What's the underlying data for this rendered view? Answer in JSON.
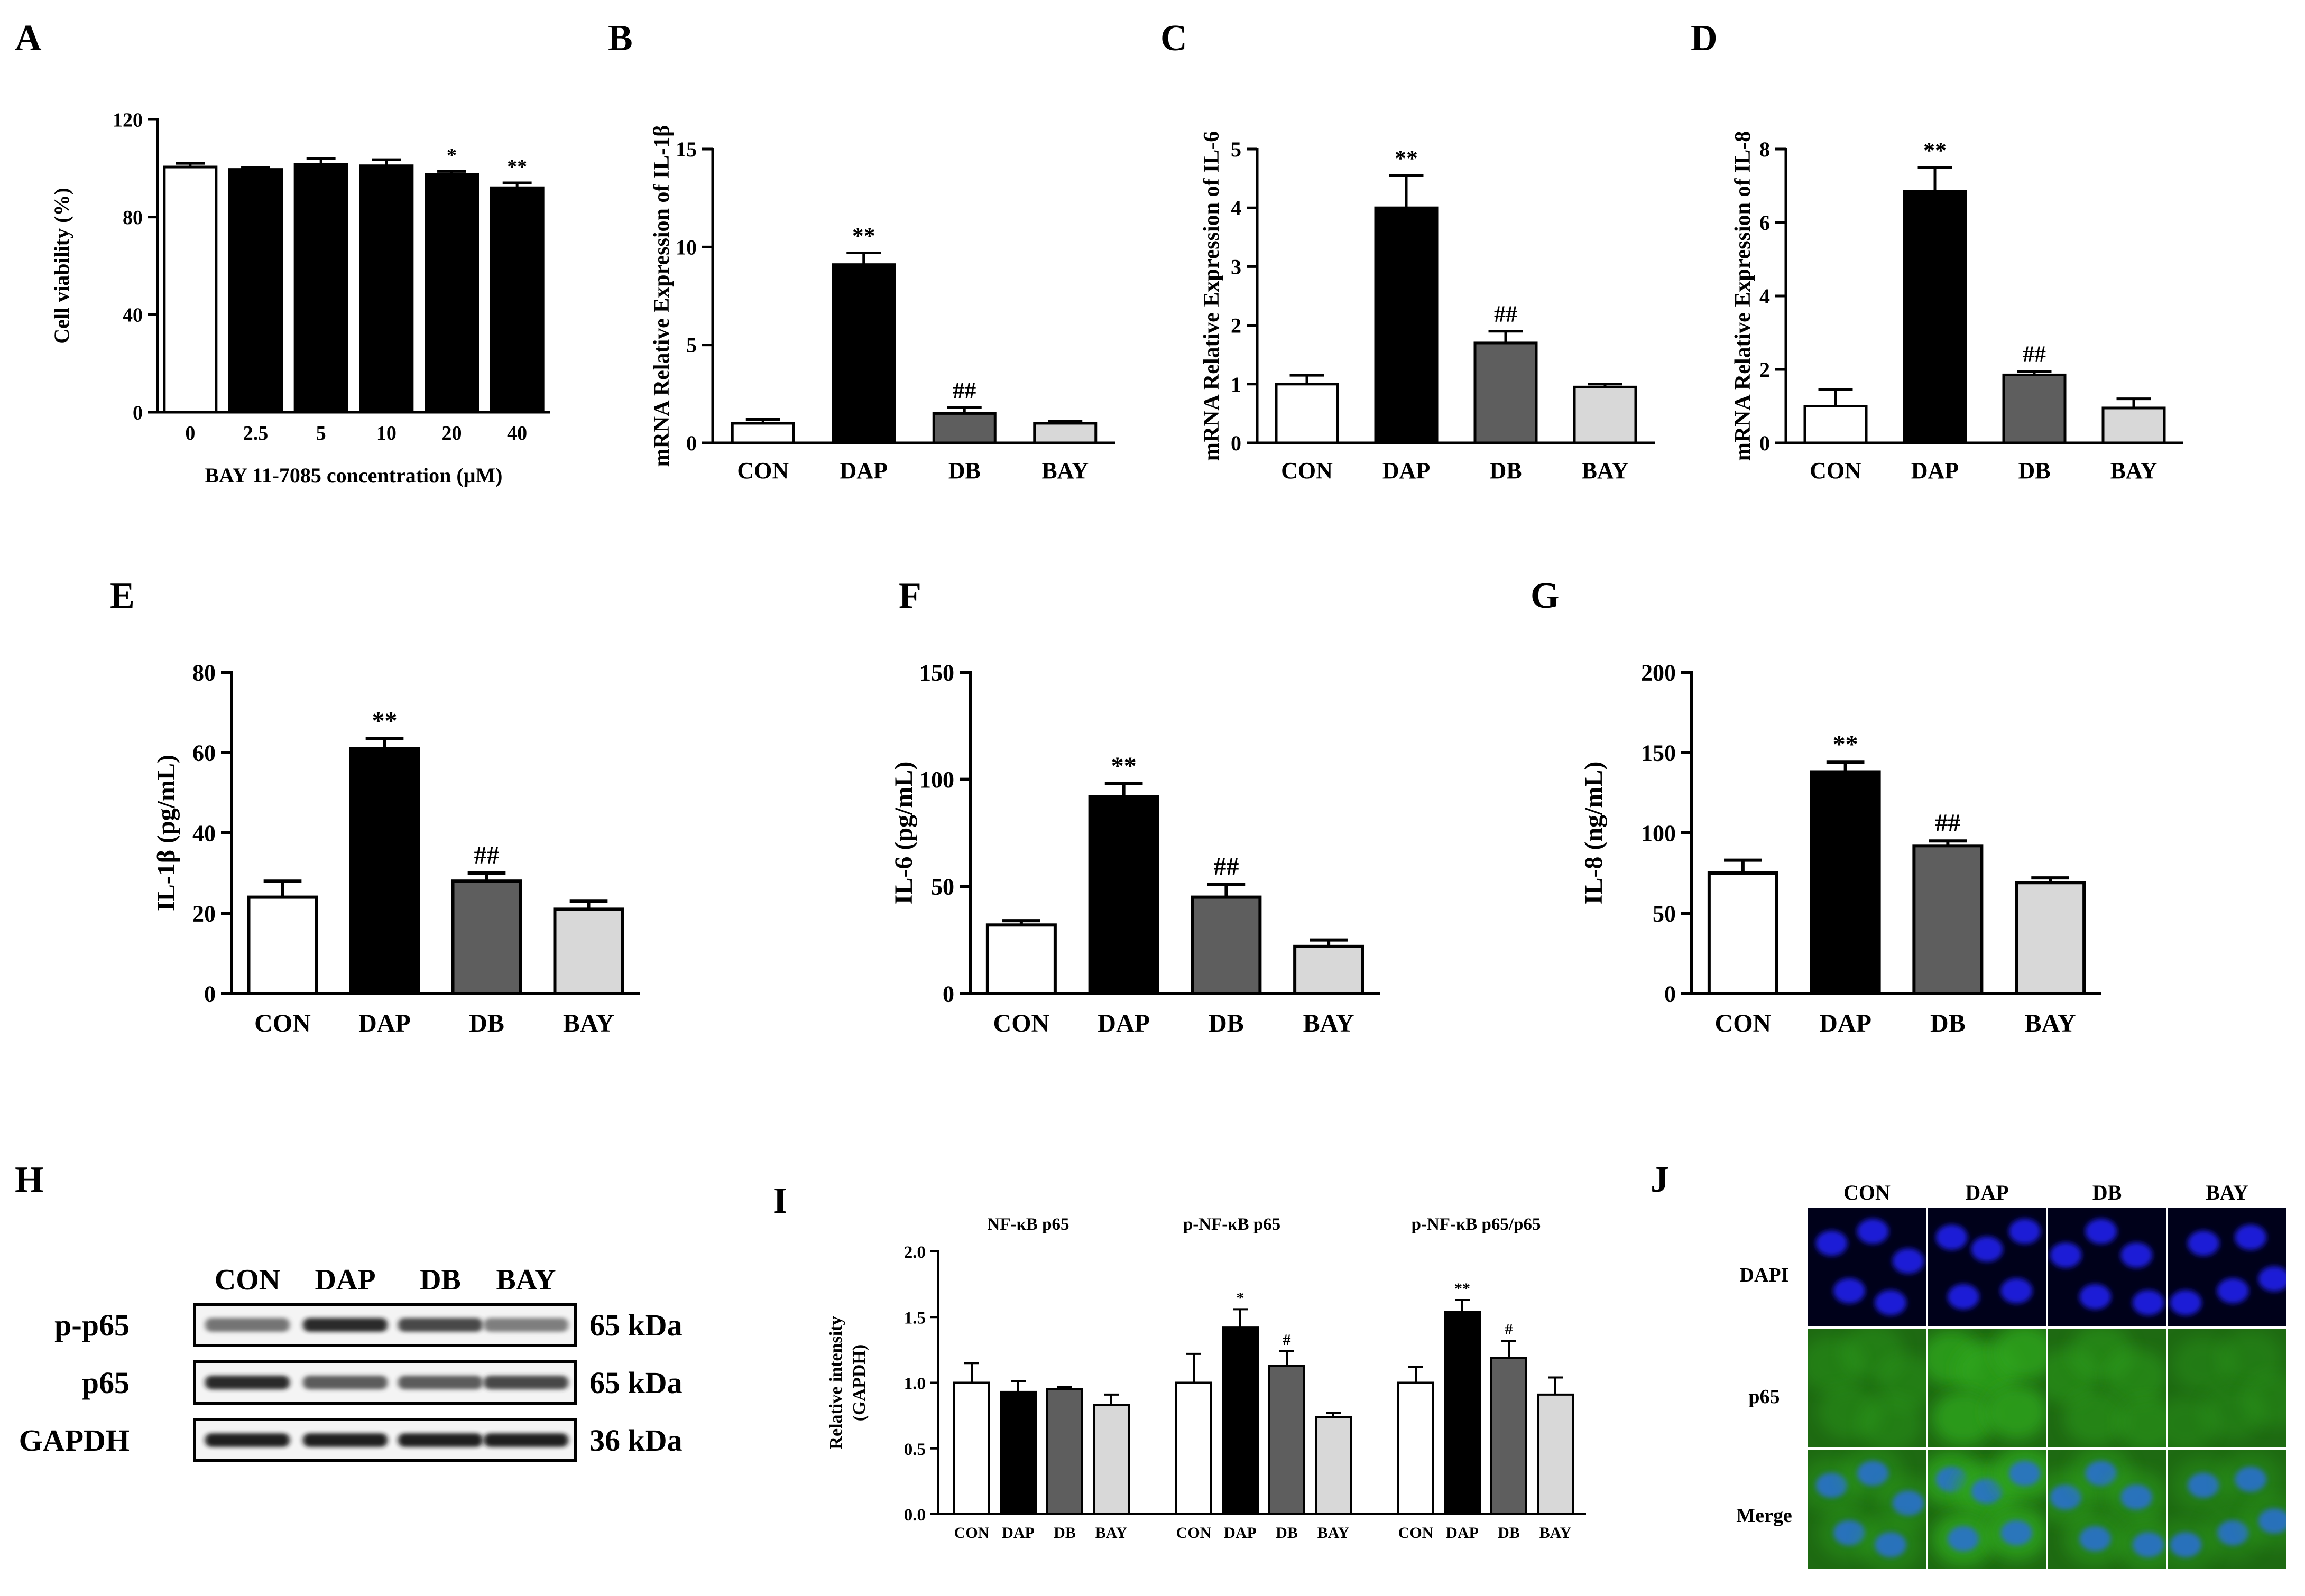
{
  "colors": {
    "CON": "#ffffff",
    "DAP": "#000000",
    "DB": "#5e5e5e",
    "BAY": "#d8d8d8",
    "dapi_bg": "#00011a",
    "dapi_nuc": "#1a1fd6",
    "p65_bg": "#1e6a12",
    "p65_cell": "#2fa51e"
  },
  "chart_data": [
    {
      "id": "A",
      "type": "bar",
      "panel_label": "A",
      "xlabel": "BAY 11-7085 concentration (μM)",
      "ylabel": "Cell viability (%)",
      "ylim": [
        0,
        120
      ],
      "yticks": [
        0,
        40,
        80,
        120
      ],
      "categories": [
        "0",
        "2.5",
        "5",
        "10",
        "20",
        "40"
      ],
      "values": [
        100.5,
        99.5,
        101.5,
        101.0,
        97.5,
        92.0
      ],
      "errors": [
        1.5,
        0.8,
        2.5,
        2.5,
        1.2,
        2.0
      ],
      "fills": [
        "CON",
        "DAP",
        "DAP",
        "DAP",
        "DAP",
        "DAP"
      ],
      "sig": [
        "",
        "",
        "",
        "",
        "*",
        "**"
      ]
    },
    {
      "id": "B",
      "type": "bar",
      "panel_label": "B",
      "xlabel": "",
      "ylabel": "mRNA Relative Expression of IL-1β",
      "ylim": [
        0,
        15
      ],
      "yticks": [
        0,
        5,
        10,
        15
      ],
      "categories": [
        "CON",
        "DAP",
        "DB",
        "BAY"
      ],
      "values": [
        1.0,
        9.1,
        1.5,
        1.0
      ],
      "errors": [
        0.2,
        0.6,
        0.3,
        0.1
      ],
      "fills": [
        "CON",
        "DAP",
        "DB",
        "BAY"
      ],
      "sig": [
        "",
        "**",
        "##",
        ""
      ]
    },
    {
      "id": "C",
      "type": "bar",
      "panel_label": "C",
      "xlabel": "",
      "ylabel": "mRNA Relative Expression of IL-6",
      "ylim": [
        0,
        5
      ],
      "yticks": [
        0,
        1,
        2,
        3,
        4,
        5
      ],
      "categories": [
        "CON",
        "DAP",
        "DB",
        "BAY"
      ],
      "values": [
        1.0,
        4.0,
        1.7,
        0.95
      ],
      "errors": [
        0.15,
        0.55,
        0.2,
        0.05
      ],
      "fills": [
        "CON",
        "DAP",
        "DB",
        "BAY"
      ],
      "sig": [
        "",
        "**",
        "##",
        ""
      ]
    },
    {
      "id": "D",
      "type": "bar",
      "panel_label": "D",
      "xlabel": "",
      "ylabel": "mRNA Relative Expression of IL-8",
      "ylim": [
        0,
        8
      ],
      "yticks": [
        0,
        2,
        4,
        6,
        8
      ],
      "categories": [
        "CON",
        "DAP",
        "DB",
        "BAY"
      ],
      "values": [
        1.0,
        6.85,
        1.85,
        0.95
      ],
      "errors": [
        0.45,
        0.65,
        0.1,
        0.25
      ],
      "fills": [
        "CON",
        "DAP",
        "DB",
        "BAY"
      ],
      "sig": [
        "",
        "**",
        "##",
        ""
      ]
    },
    {
      "id": "E",
      "type": "bar",
      "panel_label": "E",
      "xlabel": "",
      "ylabel": "IL-1β (pg/mL)",
      "ylim": [
        0,
        80
      ],
      "yticks": [
        0,
        20,
        40,
        60,
        80
      ],
      "categories": [
        "CON",
        "DAP",
        "DB",
        "BAY"
      ],
      "values": [
        24,
        61,
        28,
        21
      ],
      "errors": [
        4,
        2.5,
        2,
        2
      ],
      "fills": [
        "CON",
        "DAP",
        "DB",
        "BAY"
      ],
      "sig": [
        "",
        "**",
        "##",
        ""
      ]
    },
    {
      "id": "F",
      "type": "bar",
      "panel_label": "F",
      "xlabel": "",
      "ylabel": "IL-6 (pg/mL)",
      "ylim": [
        0,
        150
      ],
      "yticks": [
        0,
        50,
        100,
        150
      ],
      "categories": [
        "CON",
        "DAP",
        "DB",
        "BAY"
      ],
      "values": [
        32,
        92,
        45,
        22
      ],
      "errors": [
        2,
        6,
        6,
        3
      ],
      "fills": [
        "CON",
        "DAP",
        "DB",
        "BAY"
      ],
      "sig": [
        "",
        "**",
        "##",
        ""
      ]
    },
    {
      "id": "G",
      "type": "bar",
      "panel_label": "G",
      "xlabel": "",
      "ylabel": "IL-8 (ng/mL)",
      "ylim": [
        0,
        200
      ],
      "yticks": [
        0,
        50,
        100,
        150,
        200
      ],
      "categories": [
        "CON",
        "DAP",
        "DB",
        "BAY"
      ],
      "values": [
        75,
        138,
        92,
        69
      ],
      "errors": [
        8,
        6,
        3,
        3
      ],
      "fills": [
        "CON",
        "DAP",
        "DB",
        "BAY"
      ],
      "sig": [
        "",
        "**",
        "##",
        ""
      ]
    },
    {
      "id": "I",
      "type": "bar",
      "panel_label": "I",
      "xlabel": "",
      "ylabel": "Relative intensity (GAPDH)",
      "ylim": [
        0,
        2.0
      ],
      "yticks": [
        0.0,
        0.5,
        1.0,
        1.5,
        2.0
      ],
      "groups": [
        {
          "title": "NF-κB p65",
          "categories": [
            "CON",
            "DAP",
            "DB",
            "BAY"
          ],
          "values": [
            1.0,
            0.93,
            0.95,
            0.83
          ],
          "errors": [
            0.15,
            0.08,
            0.02,
            0.08
          ],
          "sig": [
            "",
            "",
            "",
            ""
          ]
        },
        {
          "title": "p-NF-κB p65",
          "categories": [
            "CON",
            "DAP",
            "DB",
            "BAY"
          ],
          "values": [
            1.0,
            1.42,
            1.13,
            0.74
          ],
          "errors": [
            0.22,
            0.14,
            0.11,
            0.03
          ],
          "sig": [
            "",
            "*",
            "#",
            ""
          ]
        },
        {
          "title": "p-NF-κB p65/p65",
          "categories": [
            "CON",
            "DAP",
            "DB",
            "BAY"
          ],
          "values": [
            1.0,
            1.54,
            1.19,
            0.91
          ],
          "errors": [
            0.12,
            0.09,
            0.13,
            0.13
          ],
          "sig": [
            "",
            "**",
            "#",
            ""
          ]
        }
      ],
      "fills": [
        "CON",
        "DAP",
        "DB",
        "BAY"
      ]
    }
  ],
  "western_blot": {
    "panel_label": "H",
    "lanes": [
      "CON",
      "DAP",
      "DB",
      "BAY"
    ],
    "rows": [
      {
        "protein": "p-p65",
        "size": "65 kDa",
        "intensities": [
          0.45,
          0.85,
          0.7,
          0.4
        ]
      },
      {
        "protein": "p65",
        "size": "65 kDa",
        "intensities": [
          0.85,
          0.6,
          0.6,
          0.7
        ]
      },
      {
        "protein": "GAPDH",
        "size": "36 kDa",
        "intensities": [
          0.9,
          0.9,
          0.9,
          0.9
        ]
      }
    ]
  },
  "immunofluorescence": {
    "panel_label": "J",
    "columns": [
      "CON",
      "DAP",
      "DB",
      "BAY"
    ],
    "rows": [
      "DAPI",
      "p65",
      "Merge"
    ],
    "p65_intensity": [
      0.35,
      0.8,
      0.45,
      0.3
    ]
  }
}
